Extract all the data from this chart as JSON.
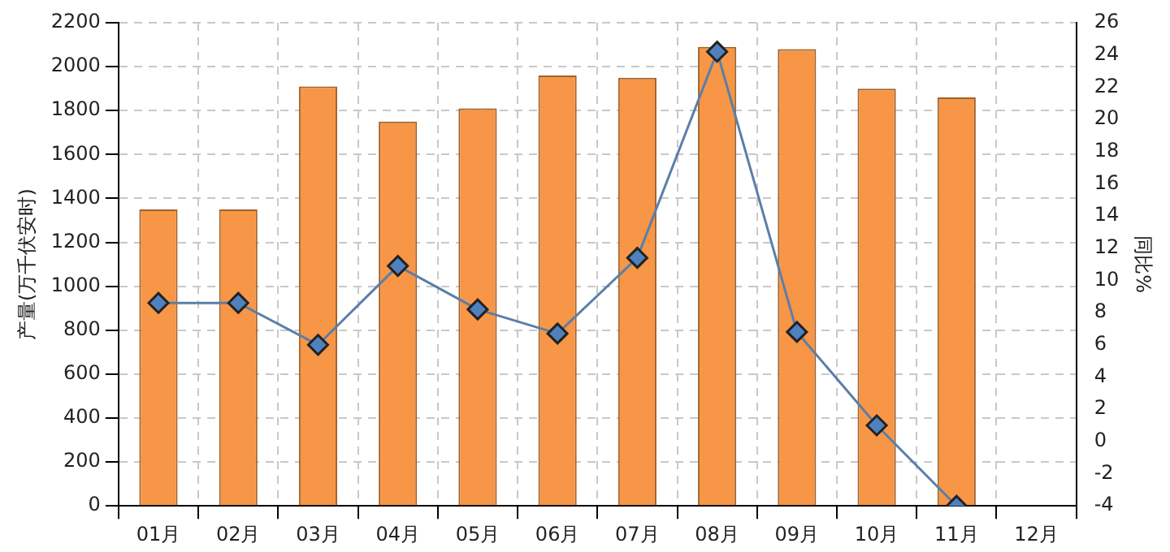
{
  "chart_data": {
    "type": "bar",
    "categories": [
      "01月",
      "02月",
      "03月",
      "04月",
      "05月",
      "06月",
      "07月",
      "08月",
      "09月",
      "10月",
      "11月",
      "12月"
    ],
    "series": [
      {
        "color": "#f79646",
        "values": [
          1350,
          1350,
          1910,
          1750,
          1810,
          1960,
          1950,
          2090,
          2080,
          1900,
          1860,
          null
        ]
      },
      {
        "type": "line",
        "axis": "y2",
        "color": "#5a7fa8",
        "marker": "diamond",
        "values": [
          8.6,
          8.6,
          6.0,
          10.9,
          8.2,
          6.7,
          11.4,
          24.2,
          6.8,
          1.0,
          -4,
          null
        ]
      }
    ],
    "ylabel": "产量(万千伏安时)",
    "y2label": "同比%",
    "ylim": [
      0,
      2200
    ],
    "yticks": [
      0,
      200,
      400,
      600,
      800,
      1000,
      1200,
      1400,
      1600,
      1800,
      2000,
      2200
    ],
    "y2lim": [
      -4,
      26
    ],
    "y2ticks": [
      -4,
      -2,
      0,
      2,
      4,
      6,
      8,
      10,
      12,
      14,
      16,
      18,
      20,
      22,
      24,
      26
    ],
    "grid": true,
    "legend": false
  }
}
